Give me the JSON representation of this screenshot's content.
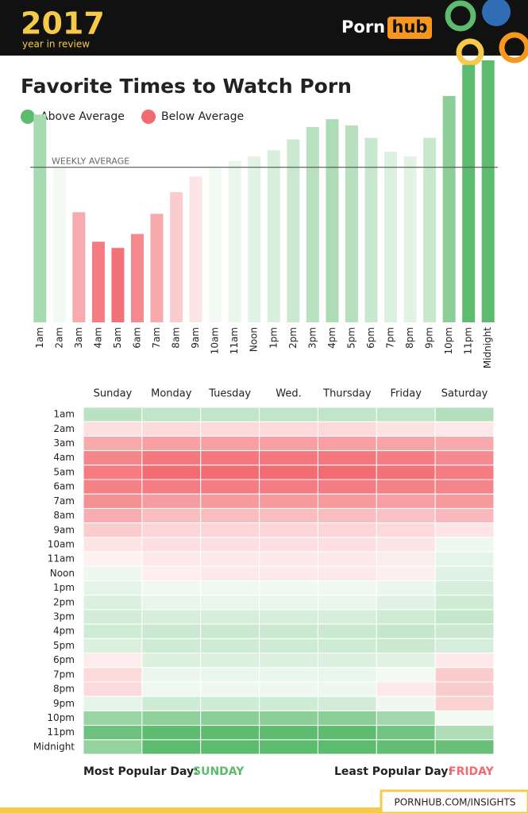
{
  "header": {
    "year": "2017",
    "subtitle": "year in review",
    "logo_left": "Porn",
    "logo_right": "hub"
  },
  "chart_data": [
    {
      "type": "bar",
      "title": "Favorite Times to Watch Porn",
      "legend": [
        {
          "name": "Above Average",
          "color": "#5dbb6f"
        },
        {
          "name": "Below Average",
          "color": "#f26b71"
        }
      ],
      "reference_line": {
        "label": "WEEKLY AVERAGE",
        "value": 100
      },
      "categories": [
        "1am",
        "2am",
        "3am",
        "4am",
        "5am",
        "6am",
        "7am",
        "8am",
        "9am",
        "10am",
        "11am",
        "Noon",
        "1pm",
        "2pm",
        "3pm",
        "4pm",
        "5pm",
        "6pm",
        "7pm",
        "8pm",
        "9pm",
        "10pm",
        "11pm",
        "Midnight"
      ],
      "values": [
        134,
        100,
        71,
        52,
        48,
        57,
        70,
        84,
        94,
        100,
        104,
        107,
        111,
        118,
        126,
        131,
        127,
        119,
        110,
        107,
        119,
        146,
        166,
        169
      ],
      "ylim": [
        0,
        170
      ]
    },
    {
      "type": "heatmap",
      "x": [
        "Sunday",
        "Monday",
        "Tuesday",
        "Wed.",
        "Thursday",
        "Friday",
        "Saturday"
      ],
      "y": [
        "1am",
        "2am",
        "3am",
        "4am",
        "5am",
        "6am",
        "7am",
        "8am",
        "9am",
        "10am",
        "11am",
        "Noon",
        "1pm",
        "2pm",
        "3pm",
        "4pm",
        "5pm",
        "6pm",
        "7pm",
        "8pm",
        "9pm",
        "10pm",
        "11pm",
        "Midnight"
      ],
      "values": [
        [
          125,
          122,
          122,
          122,
          122,
          122,
          128
        ],
        [
          92,
          90,
          90,
          90,
          90,
          93,
          95
        ],
        [
          70,
          66,
          66,
          66,
          66,
          68,
          70
        ],
        [
          56,
          50,
          50,
          50,
          50,
          52,
          58
        ],
        [
          52,
          46,
          46,
          46,
          46,
          48,
          52
        ],
        [
          54,
          52,
          52,
          52,
          52,
          54,
          56
        ],
        [
          60,
          65,
          64,
          64,
          64,
          66,
          64
        ],
        [
          72,
          78,
          78,
          78,
          78,
          80,
          76
        ],
        [
          84,
          88,
          88,
          88,
          88,
          90,
          94
        ],
        [
          94,
          92,
          92,
          92,
          92,
          94,
          102
        ],
        [
          99,
          96,
          96,
          96,
          96,
          97,
          106
        ],
        [
          102,
          98,
          96,
          96,
          96,
          98,
          108
        ],
        [
          106,
          101,
          101,
          101,
          101,
          103,
          112
        ],
        [
          110,
          105,
          104,
          104,
          104,
          108,
          116
        ],
        [
          114,
          112,
          112,
          112,
          112,
          116,
          120
        ],
        [
          116,
          118,
          118,
          118,
          118,
          120,
          118
        ],
        [
          110,
          116,
          116,
          116,
          116,
          118,
          112
        ],
        [
          97,
          110,
          110,
          110,
          110,
          108,
          96
        ],
        [
          90,
          103,
          104,
          104,
          104,
          100,
          84
        ],
        [
          90,
          101,
          102,
          102,
          102,
          96,
          84
        ],
        [
          106,
          116,
          116,
          116,
          114,
          102,
          86
        ],
        [
          140,
          144,
          146,
          146,
          146,
          136,
          100
        ],
        [
          160,
          166,
          166,
          166,
          166,
          158,
          130
        ],
        [
          142,
          170,
          170,
          170,
          168,
          164,
          162
        ]
      ]
    }
  ],
  "footer": {
    "most_label": "Most Popular Day:",
    "most_value": "SUNDAY",
    "least_label": "Least Popular Day:",
    "least_value": "FRIDAY",
    "link": "PORNHUB.COM/INSIGHTS"
  }
}
